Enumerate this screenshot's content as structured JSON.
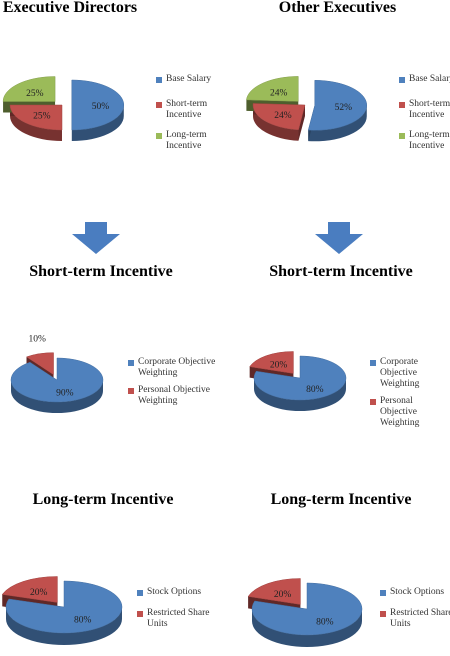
{
  "colors": {
    "blue": "#4F81BD",
    "red": "#C0504D",
    "green": "#9BBB59",
    "arrow": "#4A7DC0"
  },
  "chart_data": [
    {
      "type": "pie",
      "title": "Executive Directors",
      "categories": [
        "Base Salary",
        "Short-term Incentive",
        "Long-term Incentive"
      ],
      "values": [
        50,
        25,
        25
      ],
      "value_labels": [
        "50%",
        "25%",
        "25%"
      ],
      "colors": [
        "#4F81BD",
        "#C0504D",
        "#9BBB59"
      ],
      "legend": "right"
    },
    {
      "type": "pie",
      "title": "Other Executives",
      "categories": [
        "Base Salary",
        "Short-term Incentive",
        "Long-term Incentive"
      ],
      "values": [
        52,
        24,
        24
      ],
      "value_labels": [
        "52%",
        "24%",
        "24%"
      ],
      "colors": [
        "#4F81BD",
        "#C0504D",
        "#9BBB59"
      ],
      "legend": "right"
    },
    {
      "type": "pie",
      "title": "Short-term Incentive",
      "categories": [
        "Corporate Objective Weighting",
        "Personal Objective Weighting"
      ],
      "values": [
        90,
        10
      ],
      "value_labels": [
        "90%",
        "10%"
      ],
      "colors": [
        "#4F81BD",
        "#C0504D"
      ],
      "legend": "right"
    },
    {
      "type": "pie",
      "title": "Short-term Incentive",
      "categories": [
        "Corporate Objective Weighting",
        "Personal Objective Weighting"
      ],
      "values": [
        80,
        20
      ],
      "value_labels": [
        "80%",
        "20%"
      ],
      "colors": [
        "#4F81BD",
        "#C0504D"
      ],
      "legend": "right"
    },
    {
      "type": "pie",
      "title": "Long-term Incentive",
      "categories": [
        "Stock Options",
        "Restricted Share Units"
      ],
      "values": [
        80,
        20
      ],
      "value_labels": [
        "80%",
        "20%"
      ],
      "colors": [
        "#4F81BD",
        "#C0504D"
      ],
      "legend": "right"
    },
    {
      "type": "pie",
      "title": "Long-term Incentive",
      "categories": [
        "Stock Options",
        "Restricted Share Units"
      ],
      "values": [
        80,
        20
      ],
      "value_labels": [
        "80%",
        "20%"
      ],
      "colors": [
        "#4F81BD",
        "#C0504D"
      ],
      "legend": "right"
    }
  ]
}
